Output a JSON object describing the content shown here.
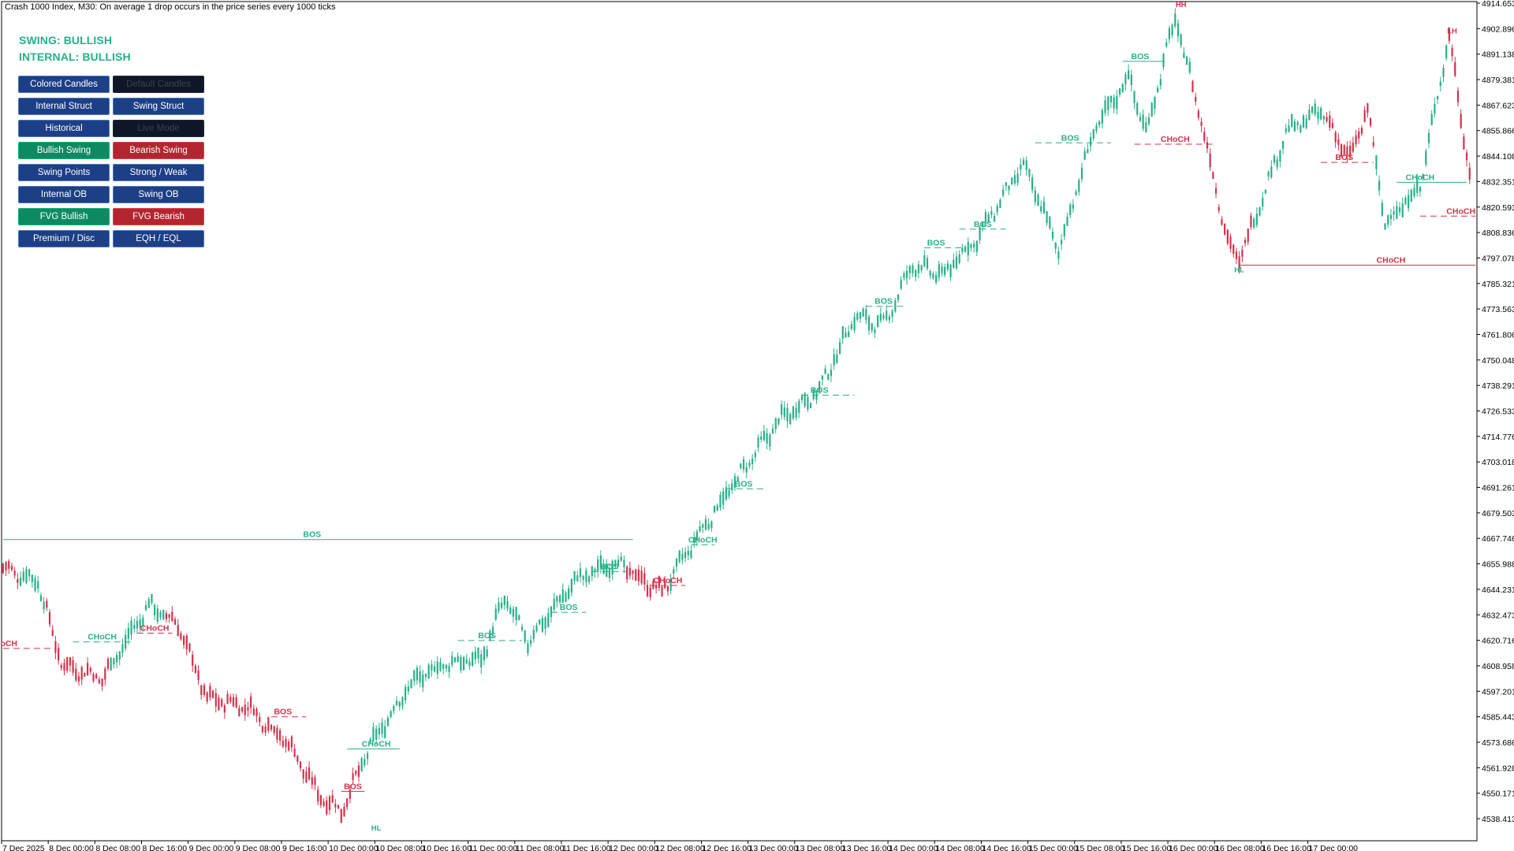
{
  "window": {
    "title": "Crash 1000 Index, M30:  On average 1 drop occurs in the price series every 1000 ticks"
  },
  "status": {
    "swing": "SWING: BULLISH",
    "internal": "INTERNAL: BULLISH"
  },
  "buttons": [
    {
      "id": "colored-candles",
      "label": "Colored Candles",
      "style": "blue"
    },
    {
      "id": "default-candles",
      "label": "Default Candles",
      "style": "dark"
    },
    {
      "id": "internal-struct",
      "label": "Internal Struct",
      "style": "blue"
    },
    {
      "id": "swing-struct",
      "label": "Swing Struct",
      "style": "blue"
    },
    {
      "id": "historical",
      "label": "Historical",
      "style": "blue"
    },
    {
      "id": "live-mode",
      "label": "Live Mode",
      "style": "dark"
    },
    {
      "id": "bullish-swing",
      "label": "Bullish Swing",
      "style": "green"
    },
    {
      "id": "bearish-swing",
      "label": "Bearish Swing",
      "style": "red"
    },
    {
      "id": "swing-points",
      "label": "Swing Points",
      "style": "blue"
    },
    {
      "id": "strong-weak",
      "label": "Strong / Weak",
      "style": "blue"
    },
    {
      "id": "internal-ob",
      "label": "Internal OB",
      "style": "blue"
    },
    {
      "id": "swing-ob",
      "label": "Swing OB",
      "style": "blue"
    },
    {
      "id": "fvg-bullish",
      "label": "FVG Bullish",
      "style": "green"
    },
    {
      "id": "fvg-bearish",
      "label": "FVG Bearish",
      "style": "red"
    },
    {
      "id": "premium-disc",
      "label": "Premium / Disc",
      "style": "blue"
    },
    {
      "id": "eqh-eql",
      "label": "EQH / EQL",
      "style": "blue"
    }
  ],
  "colors": {
    "bull": "#26b08a",
    "bear": "#d4314a",
    "axis": "#000000"
  },
  "chart_data": {
    "type": "candlestick",
    "symbol": "Crash 1000 Index",
    "timeframe": "M30",
    "ylim": [
      4532.6,
      4914.6535
    ],
    "y_ticks": [
      "4914.6535",
      "4902.8960",
      "4891.1385",
      "4879.3810",
      "4867.6235",
      "4855.8660",
      "4844.1085",
      "4832.3510",
      "4820.5935",
      "4808.8360",
      "4797.0785",
      "4785.3210",
      "4773.5635",
      "4761.8060",
      "4750.0485",
      "4738.2910",
      "4726.5335",
      "4714.7760",
      "4703.0185",
      "4691.2610",
      "4679.5035",
      "4667.7460",
      "4655.9885",
      "4644.2310",
      "4632.4735",
      "4620.7160",
      "4608.9585",
      "4597.2010",
      "4585.4435",
      "4573.6860",
      "4561.9285",
      "4550.1710",
      "4538.4135"
    ],
    "x_ticks": [
      "7 Dec 2025",
      "8 Dec 00:00",
      "8 Dec 08:00",
      "8 Dec 16:00",
      "9 Dec 00:00",
      "9 Dec 08:00",
      "9 Dec 16:00",
      "10 Dec 00:00",
      "10 Dec 08:00",
      "10 Dec 16:00",
      "11 Dec 00:00",
      "11 Dec 08:00",
      "11 Dec 16:00",
      "12 Dec 00:00",
      "12 Dec 08:00",
      "12 Dec 16:00",
      "13 Dec 00:00",
      "13 Dec 08:00",
      "13 Dec 16:00",
      "14 Dec 00:00",
      "14 Dec 08:00",
      "14 Dec 16:00",
      "15 Dec 00:00",
      "15 Dec 08:00",
      "15 Dec 16:00",
      "16 Dec 00:00",
      "16 Dec 08:00",
      "16 Dec 16:00",
      "17 Dec 00:00"
    ],
    "path_anchors": [
      {
        "bar": 0,
        "price": 4654
      },
      {
        "bar": 12,
        "price": 4648
      },
      {
        "bar": 20,
        "price": 4610
      },
      {
        "bar": 34,
        "price": 4603
      },
      {
        "bar": 50,
        "price": 4637
      },
      {
        "bar": 60,
        "price": 4628
      },
      {
        "bar": 70,
        "price": 4594
      },
      {
        "bar": 84,
        "price": 4590
      },
      {
        "bar": 98,
        "price": 4573
      },
      {
        "bar": 108,
        "price": 4550
      },
      {
        "bar": 116,
        "price": 4542
      },
      {
        "bar": 126,
        "price": 4572
      },
      {
        "bar": 140,
        "price": 4601
      },
      {
        "bar": 152,
        "price": 4610
      },
      {
        "bar": 164,
        "price": 4612
      },
      {
        "bar": 172,
        "price": 4640
      },
      {
        "bar": 180,
        "price": 4620
      },
      {
        "bar": 196,
        "price": 4648
      },
      {
        "bar": 210,
        "price": 4657
      },
      {
        "bar": 220,
        "price": 4648
      },
      {
        "bar": 226,
        "price": 4643
      },
      {
        "bar": 236,
        "price": 4664
      },
      {
        "bar": 248,
        "price": 4688
      },
      {
        "bar": 266,
        "price": 4722
      },
      {
        "bar": 280,
        "price": 4736
      },
      {
        "bar": 292,
        "price": 4770
      },
      {
        "bar": 302,
        "price": 4766
      },
      {
        "bar": 312,
        "price": 4794
      },
      {
        "bar": 322,
        "price": 4789
      },
      {
        "bar": 334,
        "price": 4806
      },
      {
        "bar": 350,
        "price": 4840
      },
      {
        "bar": 358,
        "price": 4815
      },
      {
        "bar": 362,
        "price": 4800
      },
      {
        "bar": 374,
        "price": 4855
      },
      {
        "bar": 386,
        "price": 4881
      },
      {
        "bar": 392,
        "price": 4855
      },
      {
        "bar": 402,
        "price": 4908
      },
      {
        "bar": 410,
        "price": 4866
      },
      {
        "bar": 420,
        "price": 4805
      },
      {
        "bar": 424,
        "price": 4796
      },
      {
        "bar": 440,
        "price": 4855
      },
      {
        "bar": 452,
        "price": 4865
      },
      {
        "bar": 462,
        "price": 4843
      },
      {
        "bar": 468,
        "price": 4866
      },
      {
        "bar": 474,
        "price": 4813
      },
      {
        "bar": 486,
        "price": 4830
      },
      {
        "bar": 496,
        "price": 4900
      },
      {
        "bar": 503,
        "price": 4836
      }
    ],
    "bear_ranges": [
      [
        0,
        5
      ],
      [
        15,
        36
      ],
      [
        56,
        122
      ],
      [
        214,
        228
      ],
      [
        408,
        428
      ],
      [
        454,
        470
      ],
      [
        496,
        503
      ]
    ],
    "structure_lines": [
      {
        "label": "BOS",
        "color": "bull",
        "x1": 0,
        "x2": 216,
        "price": 4667.2,
        "style": "solid",
        "label_bar": 106
      },
      {
        "label": "oCH",
        "color": "bear",
        "x1": 0,
        "x2": 18,
        "price": 4617.0,
        "style": "dashed",
        "label_bar": 2
      },
      {
        "label": "CHoCH",
        "color": "bull",
        "x1": 24,
        "x2": 44,
        "price": 4620.0,
        "style": "dashed",
        "label_bar": 34
      },
      {
        "label": "CHoCH",
        "color": "bear",
        "x1": 46,
        "x2": 58,
        "price": 4624.0,
        "style": "dashed",
        "label_bar": 52
      },
      {
        "label": "BOS",
        "color": "bear",
        "x1": 92,
        "x2": 104,
        "price": 4585.4,
        "style": "dashed",
        "label_bar": 96
      },
      {
        "label": "BOS",
        "color": "bear",
        "x1": 116,
        "x2": 124,
        "price": 4551.0,
        "style": "solid",
        "label_bar": 120
      },
      {
        "label": "CHoCH",
        "color": "bull",
        "x1": 118,
        "x2": 136,
        "price": 4570.6,
        "style": "solid",
        "label_bar": 128
      },
      {
        "label": "BOS",
        "color": "bull",
        "x1": 156,
        "x2": 178,
        "price": 4620.6,
        "style": "dashed",
        "label_bar": 166
      },
      {
        "label": "BOS",
        "color": "bull",
        "x1": 188,
        "x2": 200,
        "price": 4633.6,
        "style": "dashed",
        "label_bar": 194
      },
      {
        "label": "BOS",
        "color": "bull",
        "x1": 202,
        "x2": 214,
        "price": 4652.4,
        "style": "dashed",
        "label_bar": 208
      },
      {
        "label": "CHoCH",
        "color": "bear",
        "x1": 222,
        "x2": 234,
        "price": 4646.0,
        "style": "dashed",
        "label_bar": 228
      },
      {
        "label": "CHoCH",
        "color": "bull",
        "x1": 236,
        "x2": 244,
        "price": 4664.8,
        "style": "dashed",
        "label_bar": 240
      },
      {
        "label": "BOS",
        "color": "bull",
        "x1": 248,
        "x2": 262,
        "price": 4690.6,
        "style": "dashed",
        "label_bar": 254
      },
      {
        "label": "BOS",
        "color": "bull",
        "x1": 274,
        "x2": 292,
        "price": 4733.8,
        "style": "dashed",
        "label_bar": 280
      },
      {
        "label": "BOS",
        "color": "bull",
        "x1": 296,
        "x2": 310,
        "price": 4774.8,
        "style": "dashed",
        "label_bar": 302
      },
      {
        "label": "BOS",
        "color": "bull",
        "x1": 316,
        "x2": 330,
        "price": 4801.8,
        "style": "dashed",
        "label_bar": 320
      },
      {
        "label": "BOS",
        "color": "bull",
        "x1": 328,
        "x2": 344,
        "price": 4810.4,
        "style": "dashed",
        "label_bar": 336
      },
      {
        "label": "BOS",
        "color": "bull",
        "x1": 354,
        "x2": 380,
        "price": 4850.2,
        "style": "dashed",
        "label_bar": 366
      },
      {
        "label": "BOS",
        "color": "bull",
        "x1": 384,
        "x2": 398,
        "price": 4887.8,
        "style": "solid",
        "label_bar": 390
      },
      {
        "label": "CHoCH",
        "color": "bear",
        "x1": 388,
        "x2": 416,
        "price": 4849.6,
        "style": "dashed",
        "label_bar": 402
      },
      {
        "label": "CHoCH",
        "color": "bear",
        "x1": 424,
        "x2": 505,
        "price": 4793.8,
        "style": "solid",
        "label_bar": 476
      },
      {
        "label": "BOS",
        "color": "bear",
        "x1": 452,
        "x2": 470,
        "price": 4841.2,
        "style": "dashed",
        "label_bar": 460
      },
      {
        "label": "CHoCH",
        "color": "bull",
        "x1": 478,
        "x2": 502,
        "price": 4832.0,
        "style": "solid",
        "label_bar": 486
      },
      {
        "label": "CHoCH",
        "color": "bear",
        "x1": 486,
        "x2": 505,
        "price": 4816.4,
        "style": "dashed",
        "label_bar": 500
      }
    ],
    "swing_labels": [
      {
        "label": "HH",
        "color": "bear",
        "bar": 404,
        "price": 4912.8
      },
      {
        "label": "LH",
        "color": "bear",
        "bar": 497,
        "price": 4900.6
      },
      {
        "label": "HL",
        "color": "bull",
        "bar": 424,
        "price": 4790.6
      },
      {
        "label": "HL",
        "color": "bull",
        "bar": 128,
        "price": 4533.0
      }
    ]
  }
}
